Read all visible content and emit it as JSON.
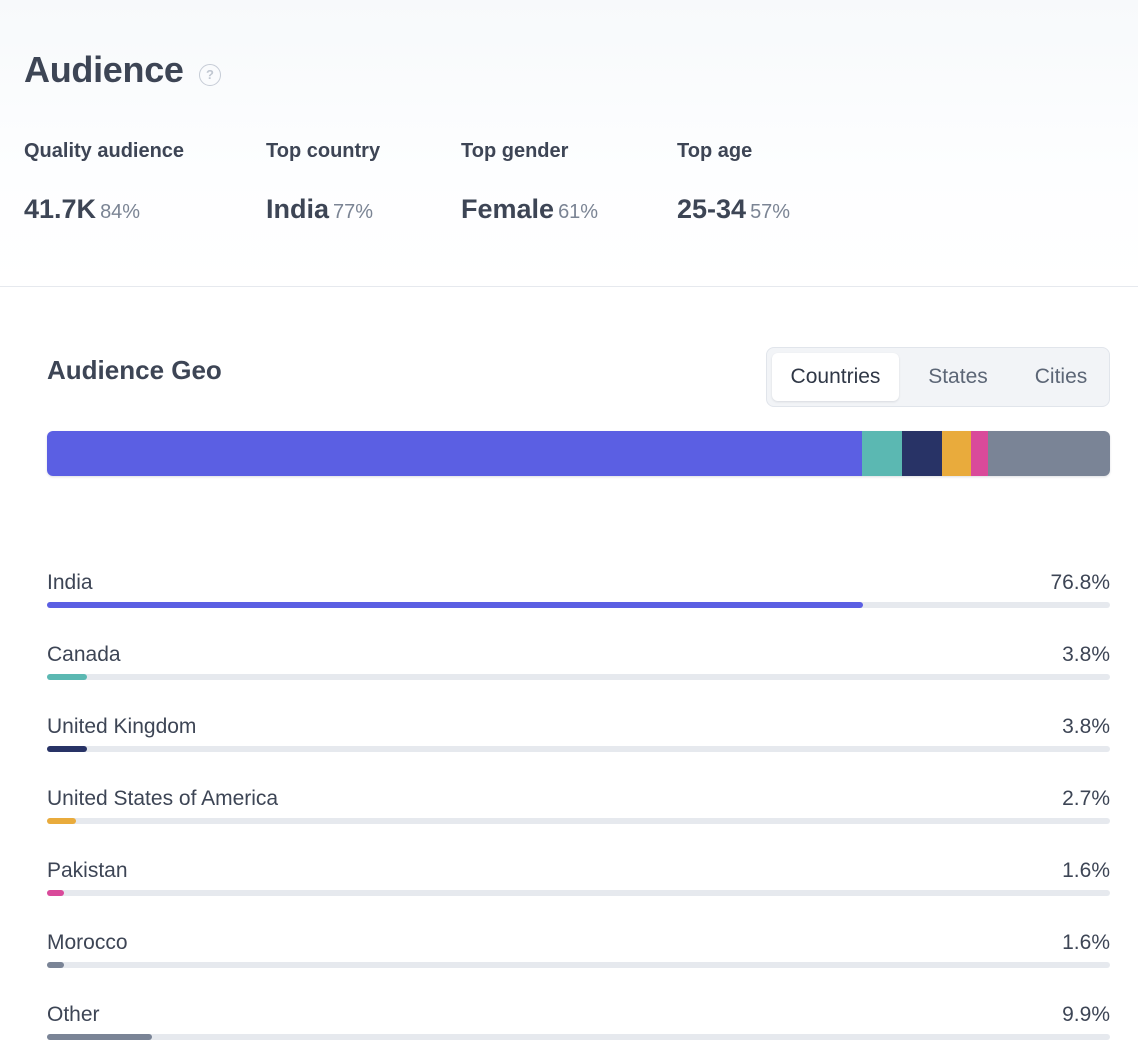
{
  "header": {
    "title": "Audience",
    "help_icon": "question-circle-icon",
    "stats": [
      {
        "label": "Quality audience",
        "value": "41.7K",
        "pct": "84%"
      },
      {
        "label": "Top country",
        "value": "India",
        "pct": "77%"
      },
      {
        "label": "Top gender",
        "value": "Female",
        "pct": "61%"
      },
      {
        "label": "Top age",
        "value": "25-34",
        "pct": "57%"
      }
    ]
  },
  "geo": {
    "title": "Audience Geo",
    "tabs": [
      {
        "label": "Countries",
        "active": true
      },
      {
        "label": "States",
        "active": false
      },
      {
        "label": "Cities",
        "active": false
      }
    ],
    "items": [
      {
        "name": "India",
        "pct_label": "76.8%",
        "value": 76.8,
        "color": "#5b5fe3"
      },
      {
        "name": "Canada",
        "pct_label": "3.8%",
        "value": 3.8,
        "color": "#5bb8b2"
      },
      {
        "name": "United Kingdom",
        "pct_label": "3.8%",
        "value": 3.8,
        "color": "#283366"
      },
      {
        "name": "United States of America",
        "pct_label": "2.7%",
        "value": 2.7,
        "color": "#e9ab3c"
      },
      {
        "name": "Pakistan",
        "pct_label": "1.6%",
        "value": 1.6,
        "color": "#d94a9a"
      },
      {
        "name": "Morocco",
        "pct_label": "1.6%",
        "value": 1.6,
        "color": "#7a8496"
      },
      {
        "name": "Other",
        "pct_label": "9.9%",
        "value": 9.9,
        "color": "#7a8496"
      }
    ]
  }
}
